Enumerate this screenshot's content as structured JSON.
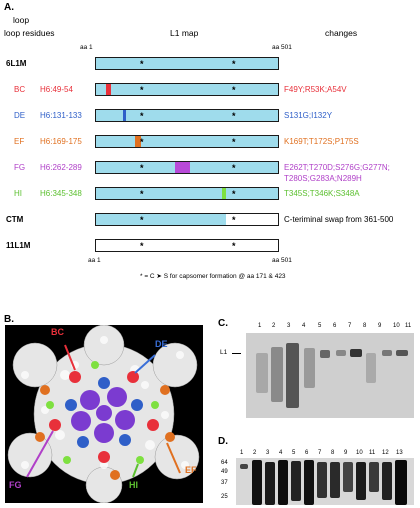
{
  "panel_a": {
    "letter": "A.",
    "header_loop": "loop",
    "header_residues": "loop residues",
    "header_map": "L1 map",
    "header_changes": "changes",
    "aa_start": "aa 1",
    "aa_end": "aa 501",
    "footnote": "* = C ➤ S for capsomer formation @ aa 171 & 423",
    "rows": [
      {
        "loop": "6L1M",
        "residues": "",
        "change": "",
        "color": "#000000"
      },
      {
        "loop": "BC",
        "residues": "H6:49-54",
        "change": "F49Y;R53K;A54V",
        "color": "#e8303a",
        "marker_color": "#e8303a"
      },
      {
        "loop": "DE",
        "residues": "H6:131-133",
        "change": "S131G;I132Y",
        "color": "#2f5fc8",
        "marker_color": "#2f5fc8"
      },
      {
        "loop": "EF",
        "residues": "H6:169-175",
        "change": "K169T;T172S;P175S",
        "color": "#e07020",
        "marker_color": "#e07020"
      },
      {
        "loop": "FG",
        "residues": "H6:262-289",
        "change": "E262T;T270D;S276G;G277N;",
        "change2": "T280S;G283A;N289H",
        "color": "#b040c8",
        "marker_color": "#b84ad8"
      },
      {
        "loop": "HI",
        "residues": "H6:345-348",
        "change": "T345S;T346K;S348A",
        "color": "#5cc030",
        "marker_color": "#7ee040"
      },
      {
        "loop": "CTM",
        "residues": "",
        "change": "C-teriminal swap from 361-500",
        "color": "#000000"
      },
      {
        "loop": "11L1M",
        "residues": "",
        "change": "",
        "color": "#000000"
      }
    ],
    "bar_color": "#9fdcec"
  },
  "panel_b": {
    "letter": "B.",
    "labels": [
      {
        "text": "BC",
        "color": "#e8303a"
      },
      {
        "text": "DE",
        "color": "#3a6fd8"
      },
      {
        "text": "EF",
        "color": "#e07020"
      },
      {
        "text": "FG",
        "color": "#b040c8"
      },
      {
        "text": "HI",
        "color": "#5cc030"
      }
    ]
  },
  "panel_c": {
    "letter": "C.",
    "lanes": [
      "1",
      "2",
      "3",
      "4",
      "5",
      "6",
      "7",
      "8",
      "9",
      "10",
      "11"
    ],
    "marker": "L1"
  },
  "panel_d": {
    "letter": "D.",
    "lanes": [
      "1",
      "2",
      "3",
      "4",
      "5",
      "6",
      "7",
      "8",
      "9",
      "10",
      "11",
      "12",
      "13"
    ],
    "mw": [
      "64",
      "49",
      "37",
      "25"
    ]
  }
}
